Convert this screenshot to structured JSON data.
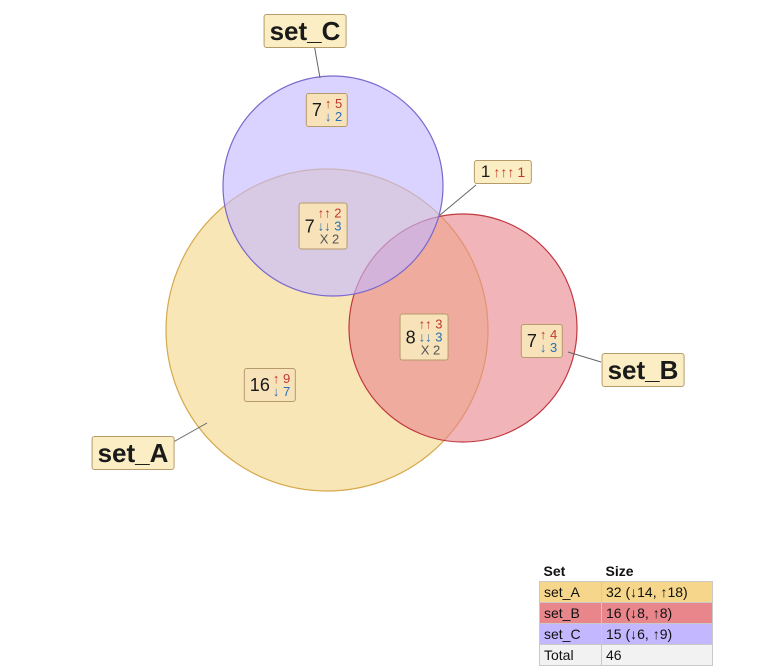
{
  "sets": [
    {
      "id": "A",
      "name": "set_A",
      "color": "#f5d68a",
      "stroke": "#d6a94c"
    },
    {
      "id": "B",
      "name": "set_B",
      "color": "#e8868c",
      "stroke": "#c0393f"
    },
    {
      "id": "C",
      "name": "set_C",
      "color": "#c3b8ff",
      "stroke": "#7a69cc"
    }
  ],
  "regions": {
    "C_only": {
      "count": "7",
      "up": "↑",
      "up_n": "5",
      "down": "↓",
      "down_n": "2"
    },
    "AC": {
      "count": "7",
      "up": "↑↑",
      "up_n": "2",
      "down": "↓↓",
      "down_n": "3",
      "mixed": "X 2"
    },
    "ABC": {
      "count": "1",
      "up": "↑↑↑",
      "up_n": "1"
    },
    "AB": {
      "count": "8",
      "up": "↑↑",
      "up_n": "3",
      "down": "↓↓",
      "down_n": "3",
      "mixed": "X 2"
    },
    "B_only": {
      "count": "7",
      "up": "↑",
      "up_n": "4",
      "down": "↓",
      "down_n": "3"
    },
    "A_only": {
      "count": "16",
      "up": "↑",
      "up_n": "9",
      "down": "↓",
      "down_n": "7"
    }
  },
  "table": {
    "headers": [
      "Set",
      "Size"
    ],
    "rows": [
      {
        "set": "set_A",
        "size": "32 (↓14, ↑18)",
        "color": "#f5d68a"
      },
      {
        "set": "set_B",
        "size": "16 (↓8, ↑8)",
        "color": "#e8868c"
      },
      {
        "set": "set_C",
        "size": "15 (↓6, ↑9)",
        "color": "#c3b8ff"
      },
      {
        "set": "Total",
        "size": "46",
        "color": "#f2f2f2"
      }
    ]
  }
}
